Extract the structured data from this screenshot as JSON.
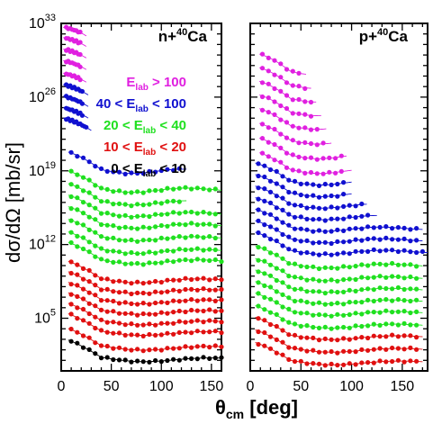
{
  "chart_data": {
    "type": "scatter",
    "ylabel": "dσ/dΩ [mb/sr]",
    "xlabel": "θcm [deg]",
    "xlabel_main": "θ",
    "xlabel_sub": "cm",
    "xlabel_rest": " [deg]",
    "yscale": "log",
    "ylim_log10": [
      0,
      33
    ],
    "y_ticks": [
      {
        "base": "10",
        "exp": "33",
        "log": 33
      },
      {
        "base": "10",
        "exp": "26",
        "log": 26
      },
      {
        "base": "10",
        "exp": "19",
        "log": 19
      },
      {
        "base": "10",
        "exp": "12",
        "log": 12
      },
      {
        "base": "10",
        "exp": "5",
        "log": 5
      }
    ],
    "legend": [
      {
        "label": "E",
        "sub": "lab",
        "rest": " > 100",
        "pre": "",
        "color": "#e020e0"
      },
      {
        "label": "E",
        "sub": "lab",
        "rest": " < 100",
        "pre": "40 < ",
        "color": "#1010d0"
      },
      {
        "label": "E",
        "sub": "lab",
        "rest": " < 40",
        "pre": "20 < ",
        "color": "#20e020"
      },
      {
        "label": "E",
        "sub": "lab",
        "rest": " < 20",
        "pre": "10 < ",
        "color": "#e01010"
      },
      {
        "label": "E",
        "sub": "lab",
        "rest": " < 10",
        "pre": "0 < ",
        "color": "#000000"
      }
    ],
    "colors": {
      "magenta": "#e020e0",
      "blue": "#1010d0",
      "green": "#20e020",
      "red": "#e01010",
      "black": "#000000"
    },
    "panels": [
      {
        "title": "n+",
        "title_sup": "40",
        "title_rest": "Ca",
        "xlim": [
          0,
          160
        ],
        "x_ticks": [
          "0",
          "50",
          "100",
          "150"
        ],
        "x_tick_values": [
          0,
          50,
          100,
          150
        ],
        "series": [
          {
            "color": "magenta",
            "base_log": 32.2,
            "x_range": [
              5,
              20
            ]
          },
          {
            "color": "magenta",
            "base_log": 31.2,
            "x_range": [
              5,
              20
            ]
          },
          {
            "color": "magenta",
            "base_log": 30.1,
            "x_range": [
              5,
              20
            ]
          },
          {
            "color": "magenta",
            "base_log": 29.0,
            "x_range": [
              5,
              20
            ]
          },
          {
            "color": "magenta",
            "base_log": 27.8,
            "x_range": [
              5,
              20
            ]
          },
          {
            "color": "blue",
            "base_log": 26.7,
            "x_range": [
              5,
              22
            ]
          },
          {
            "color": "blue",
            "base_log": 25.6,
            "x_range": [
              5,
              22
            ]
          },
          {
            "color": "blue",
            "base_log": 24.5,
            "x_range": [
              5,
              22
            ]
          },
          {
            "color": "blue",
            "base_log": 23.5,
            "x_range": [
              5,
              25
            ]
          },
          {
            "color": "blue",
            "base_log": 20.4,
            "x_range": [
              10,
              120
            ]
          },
          {
            "color": "green",
            "base_log": 18.6,
            "x_range": [
              10,
              155
            ]
          },
          {
            "color": "green",
            "base_log": 17.4,
            "x_range": [
              10,
              120
            ]
          },
          {
            "color": "green",
            "base_log": 16.3,
            "x_range": [
              10,
              155
            ]
          },
          {
            "color": "green",
            "base_log": 15.2,
            "x_range": [
              10,
              155
            ]
          },
          {
            "color": "green",
            "base_log": 14.0,
            "x_range": [
              10,
              155
            ]
          },
          {
            "color": "green",
            "base_log": 12.8,
            "x_range": [
              10,
              155
            ]
          },
          {
            "color": "green",
            "base_log": 11.8,
            "x_range": [
              10,
              160
            ]
          },
          {
            "color": "red",
            "base_log": 10.0,
            "x_range": [
              10,
              160
            ]
          },
          {
            "color": "red",
            "base_log": 9.0,
            "x_range": [
              10,
              160
            ]
          },
          {
            "color": "red",
            "base_log": 8.0,
            "x_range": [
              10,
              160
            ]
          },
          {
            "color": "red",
            "base_log": 7.0,
            "x_range": [
              10,
              160
            ]
          },
          {
            "color": "red",
            "base_log": 6.0,
            "x_range": [
              10,
              160
            ]
          },
          {
            "color": "red",
            "base_log": 5.0,
            "x_range": [
              10,
              160
            ]
          },
          {
            "color": "red",
            "base_log": 3.6,
            "x_range": [
              10,
              160
            ]
          },
          {
            "color": "black",
            "base_log": 2.5,
            "x_range": [
              10,
              160
            ]
          }
        ]
      },
      {
        "title": "p+",
        "title_sup": "40",
        "title_rest": "Ca",
        "xlim": [
          0,
          175
        ],
        "x_ticks": [
          "0",
          "50",
          "100",
          "150"
        ],
        "x_tick_values": [
          0,
          50,
          100,
          150
        ],
        "series": [
          {
            "color": "magenta",
            "base_log": 29.8,
            "x_range": [
              12,
              50
            ]
          },
          {
            "color": "magenta",
            "base_log": 28.5,
            "x_range": [
              12,
              55
            ]
          },
          {
            "color": "magenta",
            "base_log": 27.2,
            "x_range": [
              12,
              60
            ]
          },
          {
            "color": "magenta",
            "base_log": 25.9,
            "x_range": [
              12,
              65
            ]
          },
          {
            "color": "magenta",
            "base_log": 24.6,
            "x_range": [
              12,
              70
            ]
          },
          {
            "color": "magenta",
            "base_log": 23.2,
            "x_range": [
              12,
              75
            ]
          },
          {
            "color": "magenta",
            "base_log": 21.8,
            "x_range": [
              12,
              90
            ]
          },
          {
            "color": "magenta",
            "base_log": 20.4,
            "x_range": [
              12,
              95
            ]
          },
          {
            "color": "blue",
            "base_log": 19.3,
            "x_range": [
              8,
              95
            ]
          },
          {
            "color": "blue",
            "base_log": 18.2,
            "x_range": [
              8,
              95
            ]
          },
          {
            "color": "blue",
            "base_log": 17.1,
            "x_range": [
              8,
              110
            ]
          },
          {
            "color": "blue",
            "base_log": 16.0,
            "x_range": [
              8,
              120
            ]
          },
          {
            "color": "blue",
            "base_log": 14.9,
            "x_range": [
              8,
              165
            ]
          },
          {
            "color": "blue",
            "base_log": 13.8,
            "x_range": [
              8,
              165
            ]
          },
          {
            "color": "blue",
            "base_log": 12.7,
            "x_range": [
              8,
              170
            ]
          },
          {
            "color": "green",
            "base_log": 11.4,
            "x_range": [
              8,
              165
            ]
          },
          {
            "color": "green",
            "base_log": 10.2,
            "x_range": [
              8,
              165
            ]
          },
          {
            "color": "green",
            "base_log": 9.1,
            "x_range": [
              8,
              165
            ]
          },
          {
            "color": "green",
            "base_log": 8.0,
            "x_range": [
              8,
              165
            ]
          },
          {
            "color": "green",
            "base_log": 6.9,
            "x_range": [
              8,
              165
            ]
          },
          {
            "color": "green",
            "base_log": 5.7,
            "x_range": [
              8,
              165
            ]
          },
          {
            "color": "red",
            "base_log": 4.6,
            "x_range": [
              8,
              165
            ]
          },
          {
            "color": "red",
            "base_log": 3.4,
            "x_range": [
              8,
              165
            ]
          },
          {
            "color": "red",
            "base_log": 2.2,
            "x_range": [
              8,
              165
            ]
          }
        ]
      }
    ]
  }
}
